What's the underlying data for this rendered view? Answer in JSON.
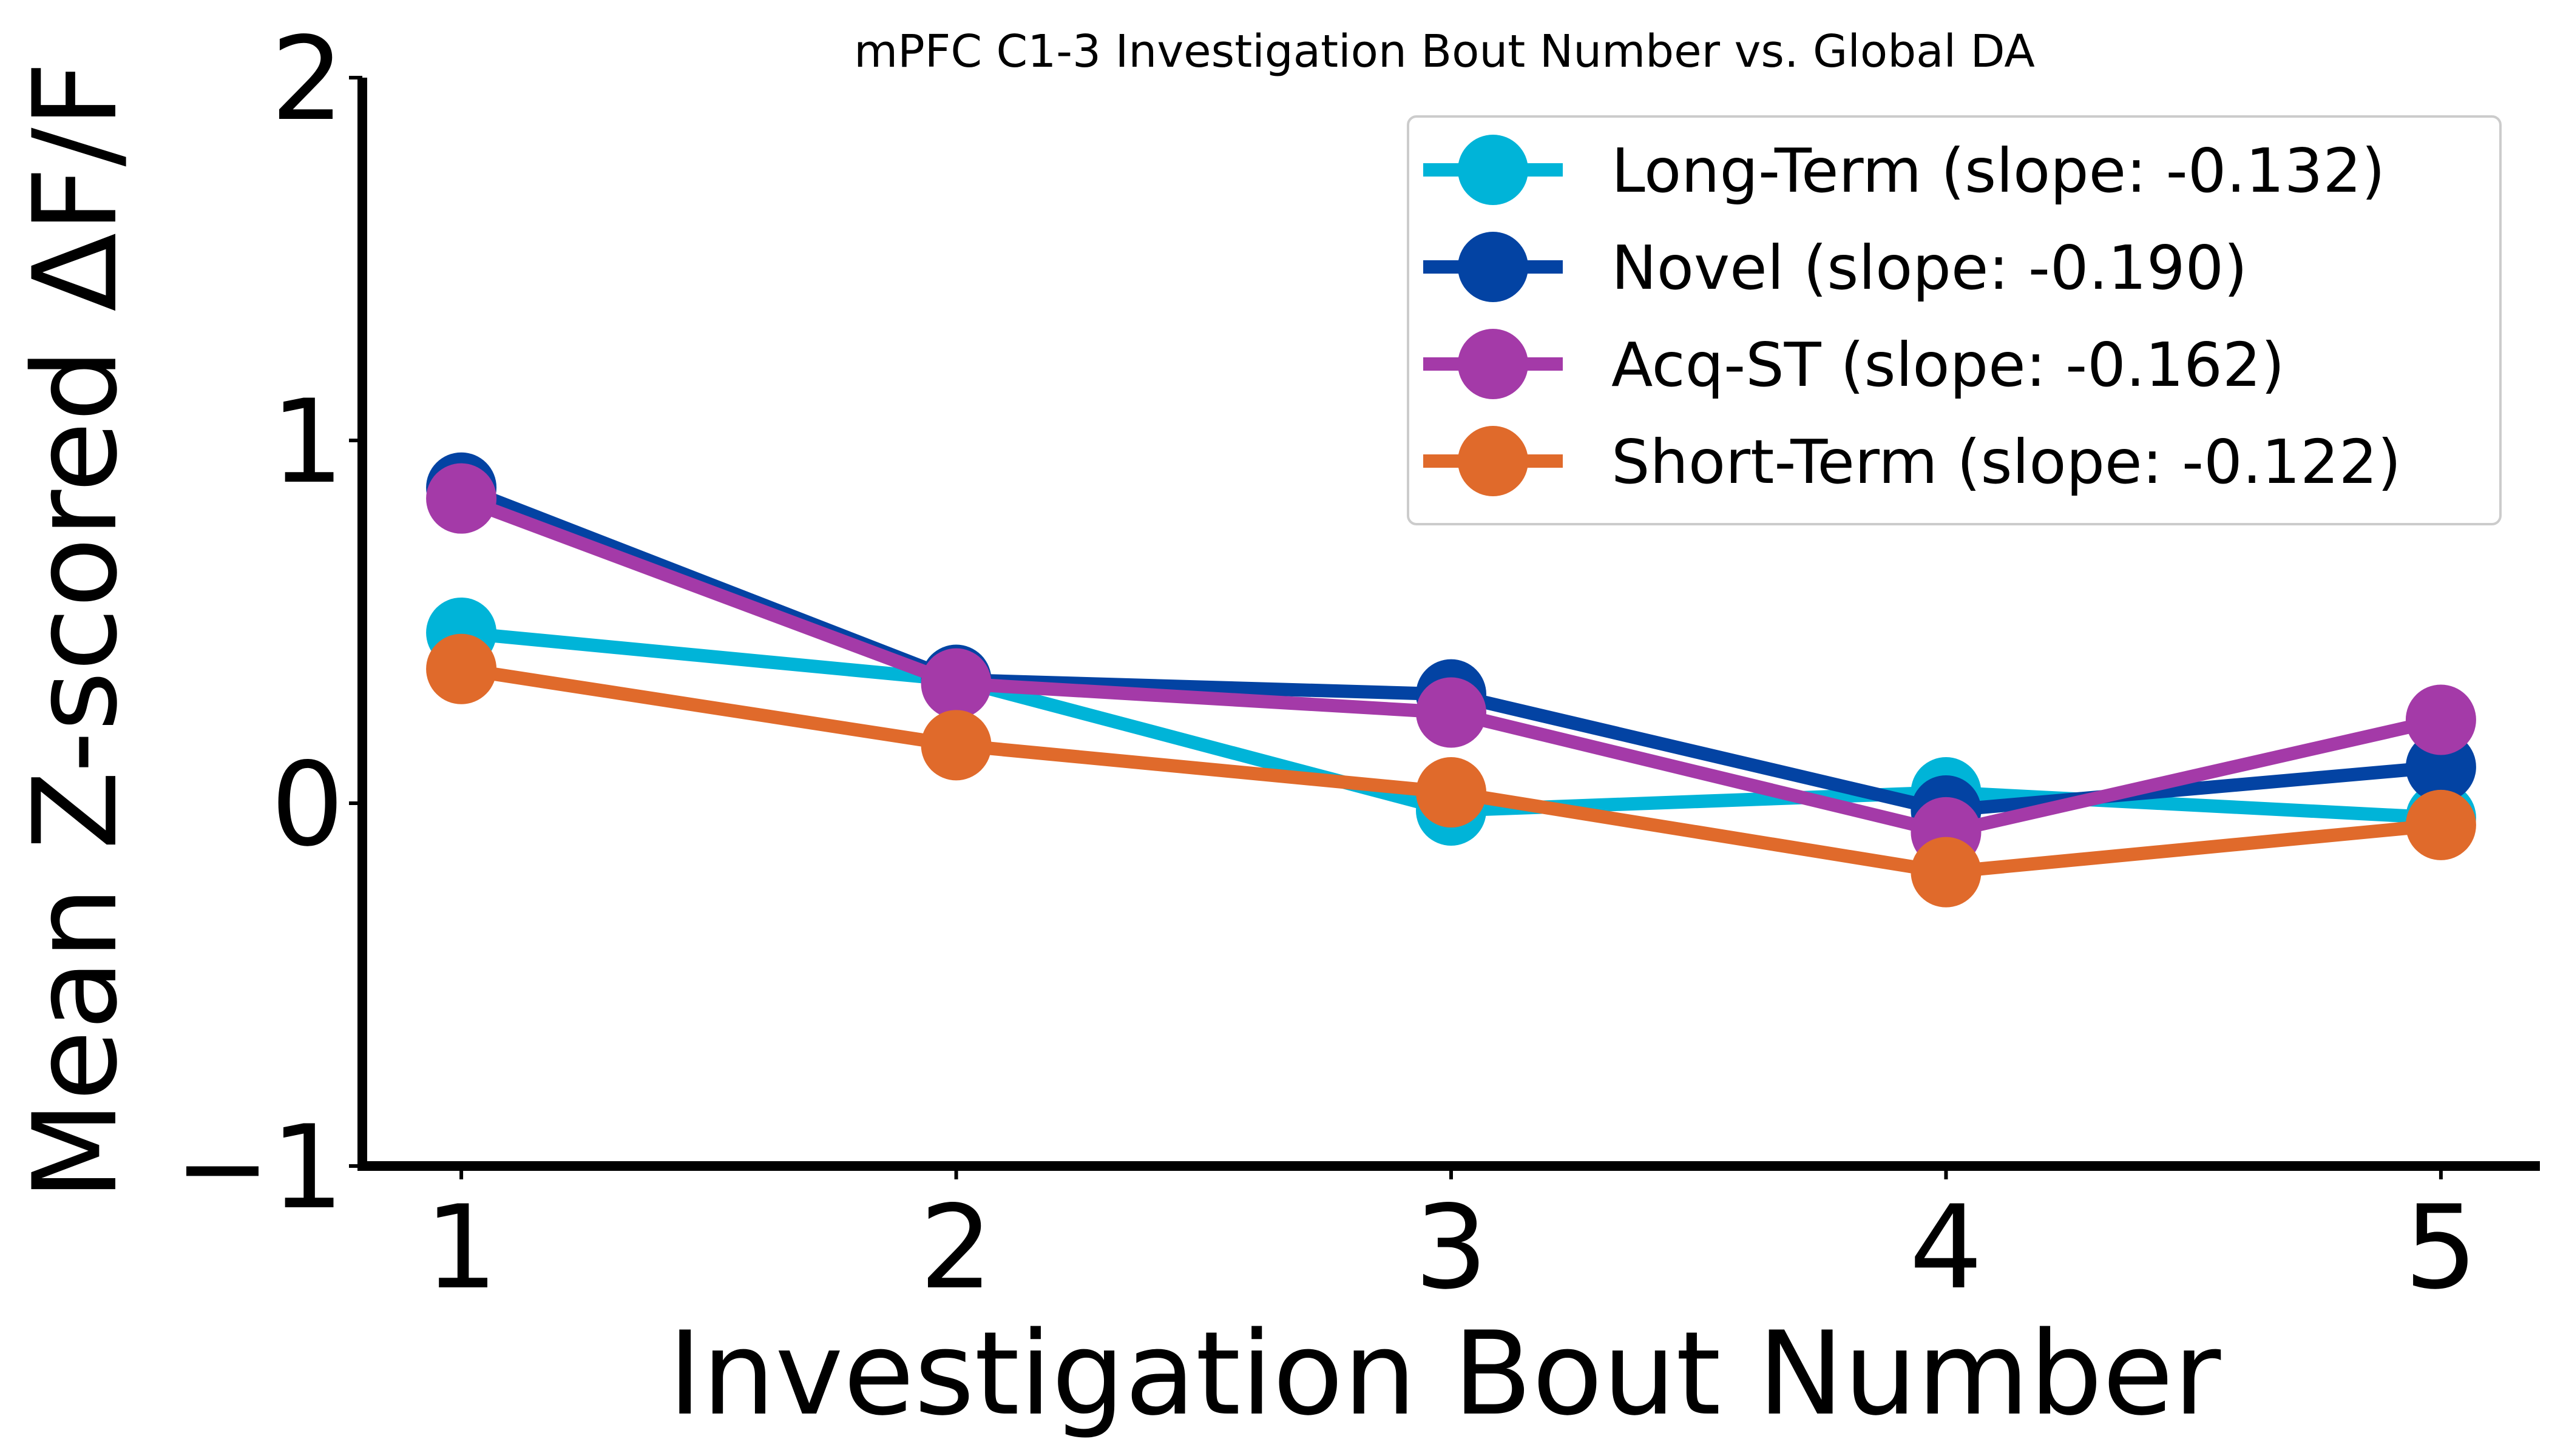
{
  "chart_data": {
    "type": "line",
    "title": "mPFC C1-3 Investigation Bout Number vs. Global DA",
    "xlabel": "Investigation Bout Number",
    "ylabel": "Mean Z-scored ΔF/F",
    "x": [
      1,
      2,
      3,
      4,
      5
    ],
    "xlim": [
      0.8,
      5.2
    ],
    "ylim": [
      -1,
      2
    ],
    "yticks": [
      -1,
      0,
      1,
      2
    ],
    "ytick_labels": [
      "−1",
      "0",
      "1",
      "2"
    ],
    "grid": false,
    "legend_position": "top-right",
    "series": [
      {
        "name": "Long-Term (slope: -0.132)",
        "color": "#00b4d8",
        "values": [
          0.47,
          0.34,
          -0.02,
          0.03,
          -0.04
        ]
      },
      {
        "name": "Novel (slope: -0.190)",
        "color": "#0343a3",
        "values": [
          0.87,
          0.34,
          0.3,
          -0.02,
          0.1
        ]
      },
      {
        "name": "Acq-ST (slope: -0.162)",
        "color": "#a43aa8",
        "values": [
          0.84,
          0.33,
          0.25,
          -0.08,
          0.23
        ]
      },
      {
        "name": "Short-Term (slope: -0.122)",
        "color": "#e06a2b",
        "values": [
          0.37,
          0.16,
          0.03,
          -0.19,
          -0.06
        ]
      }
    ]
  }
}
